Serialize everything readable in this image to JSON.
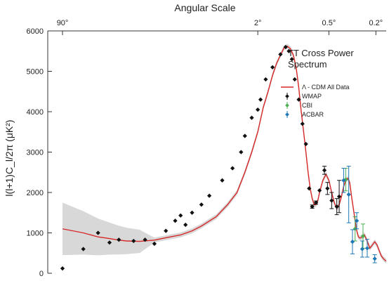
{
  "chart_data": {
    "type": "scatter",
    "title": "TT Cross Power Spectrum",
    "xlabel_top": "Angular Scale",
    "ylabel": "l(l+1)C_l/2π (μK²)",
    "ylim": [
      0,
      6000
    ],
    "y_ticks": [
      0,
      1000,
      2000,
      3000,
      4000,
      5000,
      6000
    ],
    "x_scale": "log",
    "xlim_multipole": [
      1.5,
      1100
    ],
    "top_ticks": [
      {
        "label": "90°",
        "l": 2
      },
      {
        "label": "2°",
        "l": 90
      },
      {
        "label": "0.5°",
        "l": 360
      },
      {
        "label": "0.2°",
        "l": 900
      }
    ],
    "legend": {
      "placement": "top-right",
      "entries": [
        {
          "label": "Λ - CDM All Data",
          "kind": "line",
          "color": "#d62728"
        },
        {
          "label": "WMAP",
          "kind": "errorbar",
          "color": "#111111"
        },
        {
          "label": "CBI",
          "kind": "errorbar",
          "color": "#4caf50"
        },
        {
          "label": "ACBAR",
          "kind": "errorbar",
          "color": "#1f77b4"
        }
      ]
    },
    "colors": {
      "model": "#d62728",
      "band": "#c8c8c8",
      "wmap": "#111111",
      "cbi": "#4caf50",
      "acbar": "#1f77b4"
    },
    "series": [
      {
        "name": "Λ - CDM All Data",
        "kind": "line",
        "points": [
          [
            2,
            1100
          ],
          [
            3,
            1000
          ],
          [
            4,
            900
          ],
          [
            5,
            860
          ],
          [
            6,
            820
          ],
          [
            7,
            800
          ],
          [
            9,
            790
          ],
          [
            12,
            820
          ],
          [
            15,
            880
          ],
          [
            20,
            950
          ],
          [
            25,
            1050
          ],
          [
            30,
            1170
          ],
          [
            40,
            1400
          ],
          [
            50,
            1700
          ],
          [
            60,
            2000
          ],
          [
            70,
            2500
          ],
          [
            80,
            3000
          ],
          [
            90,
            3500
          ],
          [
            100,
            4100
          ],
          [
            110,
            4500
          ],
          [
            120,
            4900
          ],
          [
            130,
            5200
          ],
          [
            140,
            5400
          ],
          [
            150,
            5580
          ],
          [
            160,
            5620
          ],
          [
            170,
            5560
          ],
          [
            180,
            5400
          ],
          [
            190,
            5100
          ],
          [
            200,
            4600
          ],
          [
            210,
            4000
          ],
          [
            220,
            3500
          ],
          [
            230,
            3000
          ],
          [
            240,
            2500
          ],
          [
            250,
            2100
          ],
          [
            260,
            1850
          ],
          [
            270,
            1700
          ],
          [
            280,
            1700
          ],
          [
            290,
            1800
          ],
          [
            300,
            2000
          ],
          [
            320,
            2300
          ],
          [
            340,
            2450
          ],
          [
            360,
            2300
          ],
          [
            380,
            2000
          ],
          [
            400,
            1750
          ],
          [
            420,
            1600
          ],
          [
            440,
            1700
          ],
          [
            460,
            1900
          ],
          [
            480,
            2150
          ],
          [
            500,
            2300
          ],
          [
            520,
            2350
          ],
          [
            540,
            2250
          ],
          [
            560,
            1900
          ],
          [
            580,
            1600
          ],
          [
            600,
            1300
          ],
          [
            620,
            1050
          ],
          [
            640,
            900
          ],
          [
            660,
            870
          ],
          [
            690,
            900
          ],
          [
            720,
            950
          ],
          [
            760,
            800
          ],
          [
            800,
            620
          ],
          [
            840,
            700
          ],
          [
            880,
            780
          ],
          [
            920,
            700
          ],
          [
            960,
            560
          ],
          [
            1000,
            430
          ],
          [
            1050,
            350
          ],
          [
            1100,
            300
          ]
        ]
      },
      {
        "name": "WMAP",
        "kind": "errorbar",
        "points": [
          [
            2,
            120,
            0
          ],
          [
            3,
            600,
            0
          ],
          [
            4,
            1000,
            0
          ],
          [
            5,
            760,
            0
          ],
          [
            6,
            830,
            0
          ],
          [
            8,
            800,
            0
          ],
          [
            10,
            830,
            0
          ],
          [
            12,
            730,
            0
          ],
          [
            15,
            1050,
            0
          ],
          [
            18,
            1300,
            0
          ],
          [
            20,
            1430,
            0
          ],
          [
            22,
            1200,
            0
          ],
          [
            25,
            1500,
            0
          ],
          [
            30,
            1700,
            0
          ],
          [
            35,
            1920,
            0
          ],
          [
            45,
            2300,
            0
          ],
          [
            55,
            2600,
            0
          ],
          [
            65,
            3000,
            0
          ],
          [
            70,
            3400,
            0
          ],
          [
            80,
            3850,
            0
          ],
          [
            90,
            4050,
            0
          ],
          [
            95,
            4300,
            0
          ],
          [
            105,
            4800,
            0
          ],
          [
            120,
            5100,
            0
          ],
          [
            140,
            5420,
            0
          ],
          [
            155,
            5600,
            0
          ],
          [
            165,
            5500,
            0
          ],
          [
            175,
            5300,
            0
          ],
          [
            185,
            4800,
            0
          ],
          [
            200,
            4300,
            0
          ],
          [
            215,
            3700,
            0
          ],
          [
            230,
            3200,
            0
          ],
          [
            245,
            2100,
            0
          ],
          [
            260,
            1650,
            40
          ],
          [
            280,
            1750,
            40
          ],
          [
            300,
            2050,
            0
          ],
          [
            330,
            2550,
            100
          ],
          [
            350,
            2100,
            150
          ],
          [
            380,
            1800,
            200
          ],
          [
            420,
            1650,
            200
          ],
          [
            440,
            1900,
            400
          ]
        ]
      },
      {
        "name": "CBI",
        "kind": "errorbar",
        "points": [
          [
            500,
            2320,
            280
          ],
          [
            600,
            1100,
            300
          ],
          [
            700,
            920,
            300
          ]
        ]
      },
      {
        "name": "ACBAR",
        "kind": "errorbar",
        "points": [
          [
            480,
            2300,
            300
          ],
          [
            530,
            1950,
            700
          ],
          [
            570,
            780,
            300
          ],
          [
            620,
            1300,
            200
          ],
          [
            690,
            600,
            200
          ],
          [
            760,
            620,
            220
          ],
          [
            880,
            360,
            100
          ]
        ]
      }
    ]
  }
}
